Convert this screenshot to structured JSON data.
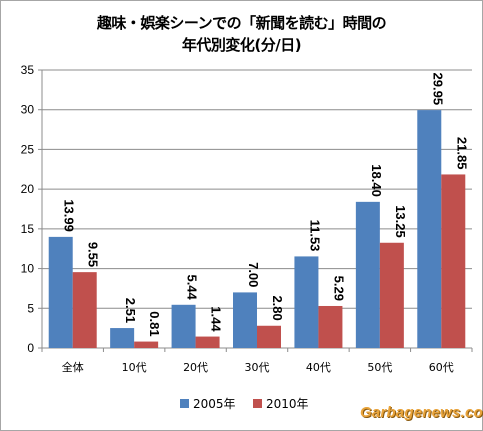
{
  "chart_data": {
    "type": "bar",
    "title_line1": "趣味・娯楽シーンでの「新聞を読む」時間の",
    "title_line2": "年代別変化(分/日)",
    "categories": [
      "全体",
      "10代",
      "20代",
      "30代",
      "40代",
      "50代",
      "60代"
    ],
    "series": [
      {
        "name": "2005年",
        "color": "#4f81bd",
        "values": [
          13.99,
          2.51,
          5.44,
          7.0,
          11.53,
          18.4,
          29.95
        ]
      },
      {
        "name": "2010年",
        "color": "#c0504d",
        "values": [
          9.55,
          0.81,
          1.44,
          2.8,
          5.29,
          13.25,
          21.85
        ]
      }
    ],
    "data_labels": [
      [
        "13.99",
        "2.51",
        "5.44",
        "7.00",
        "11.53",
        "18.40",
        "29.95"
      ],
      [
        "9.55",
        "0.81",
        "1.44",
        "2.80",
        "5.29",
        "13.25",
        "21.85"
      ]
    ],
    "yticks": [
      "0",
      "5",
      "10",
      "15",
      "20",
      "25",
      "30",
      "35"
    ],
    "ylim": [
      0,
      35
    ],
    "grid": true,
    "legend_position": "bottom"
  },
  "watermark": "Garbagenews.com"
}
